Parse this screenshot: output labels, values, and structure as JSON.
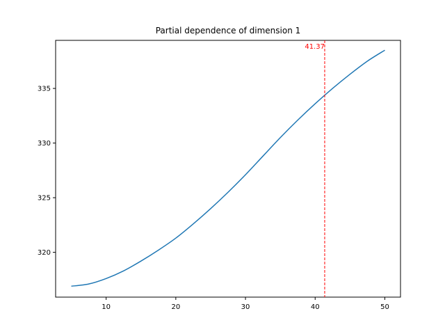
{
  "chart_data": {
    "type": "line",
    "title": "Partial dependence of dimension 1",
    "xlabel": "",
    "ylabel": "",
    "xlim": [
      2.75,
      52.25
    ],
    "ylim": [
      315.9,
      339.4
    ],
    "x_ticks": [
      10,
      20,
      30,
      40,
      50
    ],
    "y_ticks": [
      320,
      325,
      330,
      335
    ],
    "grid": false,
    "series": [
      {
        "color": "#1f77b4",
        "x": [
          5,
          7.5,
          10,
          12.5,
          15,
          17.5,
          20,
          22.5,
          25,
          27.5,
          30,
          32.5,
          35,
          37.5,
          40,
          42.5,
          45,
          47.5,
          50
        ],
        "y": [
          316.9,
          317.1,
          317.6,
          318.3,
          319.2,
          320.2,
          321.3,
          322.6,
          324.0,
          325.5,
          327.1,
          328.8,
          330.5,
          332.1,
          333.6,
          335.0,
          336.3,
          337.5,
          338.5
        ]
      }
    ],
    "vline": {
      "x": 41.37,
      "label": "41.37",
      "color": "#ff0000"
    }
  }
}
